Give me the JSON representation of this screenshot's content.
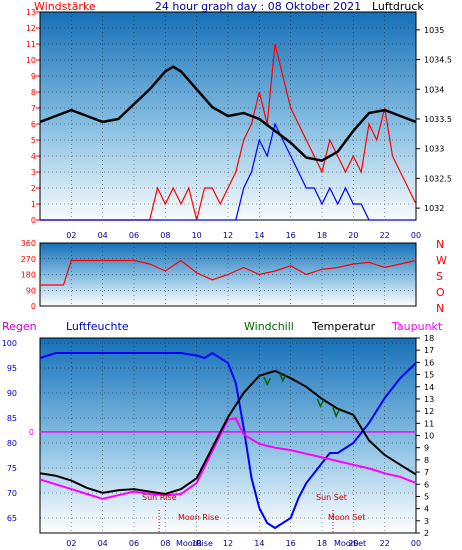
{
  "header": {
    "left": "Windstärke",
    "title": "24 hour graph day : 08 Oktober 2021",
    "right": "Luftdruck"
  },
  "bottom_header": {
    "regen": "Regen",
    "luftfeuchte": "Luftfeuchte",
    "windchill": "Windchill",
    "temperatur": "Temperatur",
    "taupunkt": "Taupunkt"
  },
  "compass": [
    "N",
    "W",
    "S",
    "O",
    "N"
  ],
  "annotations": {
    "sun_rise": "Sun Rise",
    "moon_rise": "Moon Rise",
    "sun_set": "Sun Set",
    "moon_set": "Moon Set",
    "moon_axis_1": "Moon",
    "moon_axis_2": "Rise",
    "moon_axis_3": "Moon",
    "moon_axis_4": "Set"
  },
  "colors": {
    "wind": "#ff0000",
    "gust": "#0000ff",
    "pressure": "#000000",
    "humidity": "#0000ff",
    "temperature": "#000000",
    "dewpoint": "#ff00ff",
    "windchill": "#006600",
    "rain_line": "#ff00ff",
    "header_blue": "#000099",
    "windchill_label": "#006600",
    "sky_top": "#1670b8",
    "sky_bottom": "#ffffff"
  },
  "chart_data": [
    {
      "type": "line",
      "name": "top",
      "x_ticks": [
        "02",
        "04",
        "06",
        "08",
        "10",
        "12",
        "14",
        "16",
        "18",
        "20",
        "22",
        "00"
      ],
      "y_left_ticks": [
        "0",
        "1",
        "2",
        "3",
        "4",
        "5",
        "6",
        "7",
        "8",
        "9",
        "10",
        "11",
        "12",
        "13"
      ],
      "y_right_ticks": [
        "1032",
        "1032.5",
        "1033",
        "1033.5",
        "1034",
        "1034.5",
        "1035"
      ],
      "left_ylim": [
        0,
        13
      ],
      "right_ylim": [
        1031.8,
        1035.3
      ],
      "pressure": {
        "x": [
          0,
          1,
          2,
          3,
          4,
          5,
          6,
          7,
          8,
          8.5,
          9,
          10,
          11,
          12,
          13,
          14,
          15,
          16,
          17,
          18,
          19,
          20,
          21,
          22,
          23,
          24
        ],
        "y": [
          1033.45,
          1033.55,
          1033.65,
          1033.55,
          1033.45,
          1033.5,
          1033.75,
          1034.0,
          1034.3,
          1034.38,
          1034.3,
          1034.0,
          1033.7,
          1033.55,
          1033.6,
          1033.5,
          1033.3,
          1033.1,
          1032.85,
          1032.8,
          1032.95,
          1033.3,
          1033.6,
          1033.65,
          1033.55,
          1033.45
        ]
      },
      "wind": {
        "x": [
          0,
          7,
          7.5,
          8,
          8.5,
          9,
          9.5,
          10,
          10.5,
          11,
          11.5,
          12,
          12.5,
          13,
          13.5,
          14,
          14.5,
          15,
          15.5,
          16,
          16.5,
          17,
          17.5,
          18,
          18.5,
          19,
          19.5,
          20,
          20.5,
          21,
          21.5,
          22,
          22.5,
          23,
          23.5,
          24
        ],
        "y": [
          0,
          0,
          2,
          1,
          2,
          1,
          2,
          0,
          2,
          2,
          1,
          2,
          3,
          5,
          6,
          8,
          6,
          11,
          9,
          7,
          6,
          5,
          4,
          3,
          5,
          4,
          3,
          4,
          3,
          6,
          5,
          7,
          4,
          3,
          2,
          1
        ]
      },
      "gust": {
        "x": [
          0,
          12.5,
          13,
          13.5,
          14,
          14.5,
          15,
          15.5,
          16,
          16.5,
          17,
          17.5,
          18,
          18.5,
          19,
          19.5,
          20,
          20.5,
          21,
          24
        ],
        "y": [
          0,
          0,
          2,
          3,
          5,
          4,
          6,
          5,
          4,
          3,
          2,
          2,
          1,
          2,
          1,
          2,
          1,
          1,
          0,
          0
        ]
      }
    },
    {
      "type": "line",
      "name": "wind-direction",
      "y_ticks": [
        "0",
        "90",
        "180",
        "270",
        "360"
      ],
      "ylim": [
        0,
        360
      ],
      "direction": {
        "x": [
          0,
          1.5,
          2,
          5,
          6,
          7,
          8,
          9,
          10,
          11,
          12,
          13,
          14,
          15,
          16,
          17,
          18,
          19,
          20,
          21,
          22,
          23,
          24
        ],
        "y": [
          120,
          120,
          260,
          260,
          260,
          240,
          200,
          260,
          190,
          150,
          180,
          220,
          180,
          200,
          230,
          180,
          210,
          220,
          240,
          250,
          220,
          240,
          260
        ]
      }
    },
    {
      "type": "line",
      "name": "bottom",
      "y_left_ticks": [
        "65",
        "70",
        "75",
        "80",
        "85",
        "90",
        "95",
        "100"
      ],
      "y_right_ticks": [
        "2",
        "3",
        "4",
        "5",
        "6",
        "7",
        "8",
        "9",
        "10",
        "11",
        "12",
        "13",
        "14",
        "15",
        "16",
        "17",
        "18"
      ],
      "rain_level_label": "0",
      "humidity_ylim": [
        62,
        101
      ],
      "temp_ylim": [
        2,
        18
      ],
      "humidity": {
        "x": [
          0,
          1,
          2,
          3,
          4,
          5,
          6,
          7,
          8,
          9,
          10,
          10.5,
          11,
          12,
          12.5,
          13,
          13.5,
          14,
          14.5,
          15,
          15.5,
          16,
          16.5,
          17,
          17.5,
          18,
          18.5,
          19,
          20,
          21,
          22,
          23,
          24
        ],
        "y": [
          97,
          98,
          98,
          98,
          98,
          98,
          98,
          98,
          98,
          98,
          97.5,
          97,
          98,
          96,
          92,
          83,
          73,
          67,
          64,
          63,
          64,
          65,
          69,
          72,
          74,
          76,
          78,
          78,
          80,
          84,
          89,
          93,
          96
        ]
      },
      "temperature": {
        "x": [
          0,
          1,
          2,
          3,
          4,
          5,
          6,
          7,
          8,
          9,
          10,
          11,
          12,
          13,
          14,
          15,
          16,
          17,
          18,
          19,
          20,
          21,
          22,
          23,
          24
        ],
        "y": [
          6.9,
          6.7,
          6.3,
          5.7,
          5.3,
          5.5,
          5.6,
          5.4,
          5.2,
          5.6,
          6.5,
          9.0,
          11.5,
          13.5,
          14.9,
          15.3,
          14.7,
          14.0,
          13.0,
          12.2,
          11.7,
          9.6,
          8.4,
          7.6,
          6.8
        ]
      },
      "dewpoint": {
        "x": [
          0,
          1,
          2,
          3,
          4,
          5,
          6,
          7,
          8,
          9,
          10,
          11,
          12,
          12.5,
          13,
          14,
          15,
          16,
          17,
          18,
          19,
          20,
          21,
          22,
          23,
          24
        ],
        "y": [
          6.4,
          6.0,
          5.6,
          5.2,
          4.8,
          5.1,
          5.4,
          5.2,
          5.1,
          5.2,
          6.1,
          8.7,
          11.3,
          11.4,
          10.1,
          9.3,
          9.0,
          8.8,
          8.5,
          8.2,
          7.9,
          7.6,
          7.3,
          6.9,
          6.6,
          6.1
        ]
      },
      "windchill": {
        "x": [
          14.3,
          14.5,
          14.7,
          15.3,
          15.5,
          15.7,
          17.7,
          17.9,
          18.1,
          18.7,
          18.9,
          19.1
        ],
        "y": [
          14.8,
          14.2,
          14.7,
          15.1,
          14.5,
          15.0,
          13.0,
          12.4,
          12.9,
          12.3,
          11.6,
          12.1
        ]
      }
    }
  ]
}
